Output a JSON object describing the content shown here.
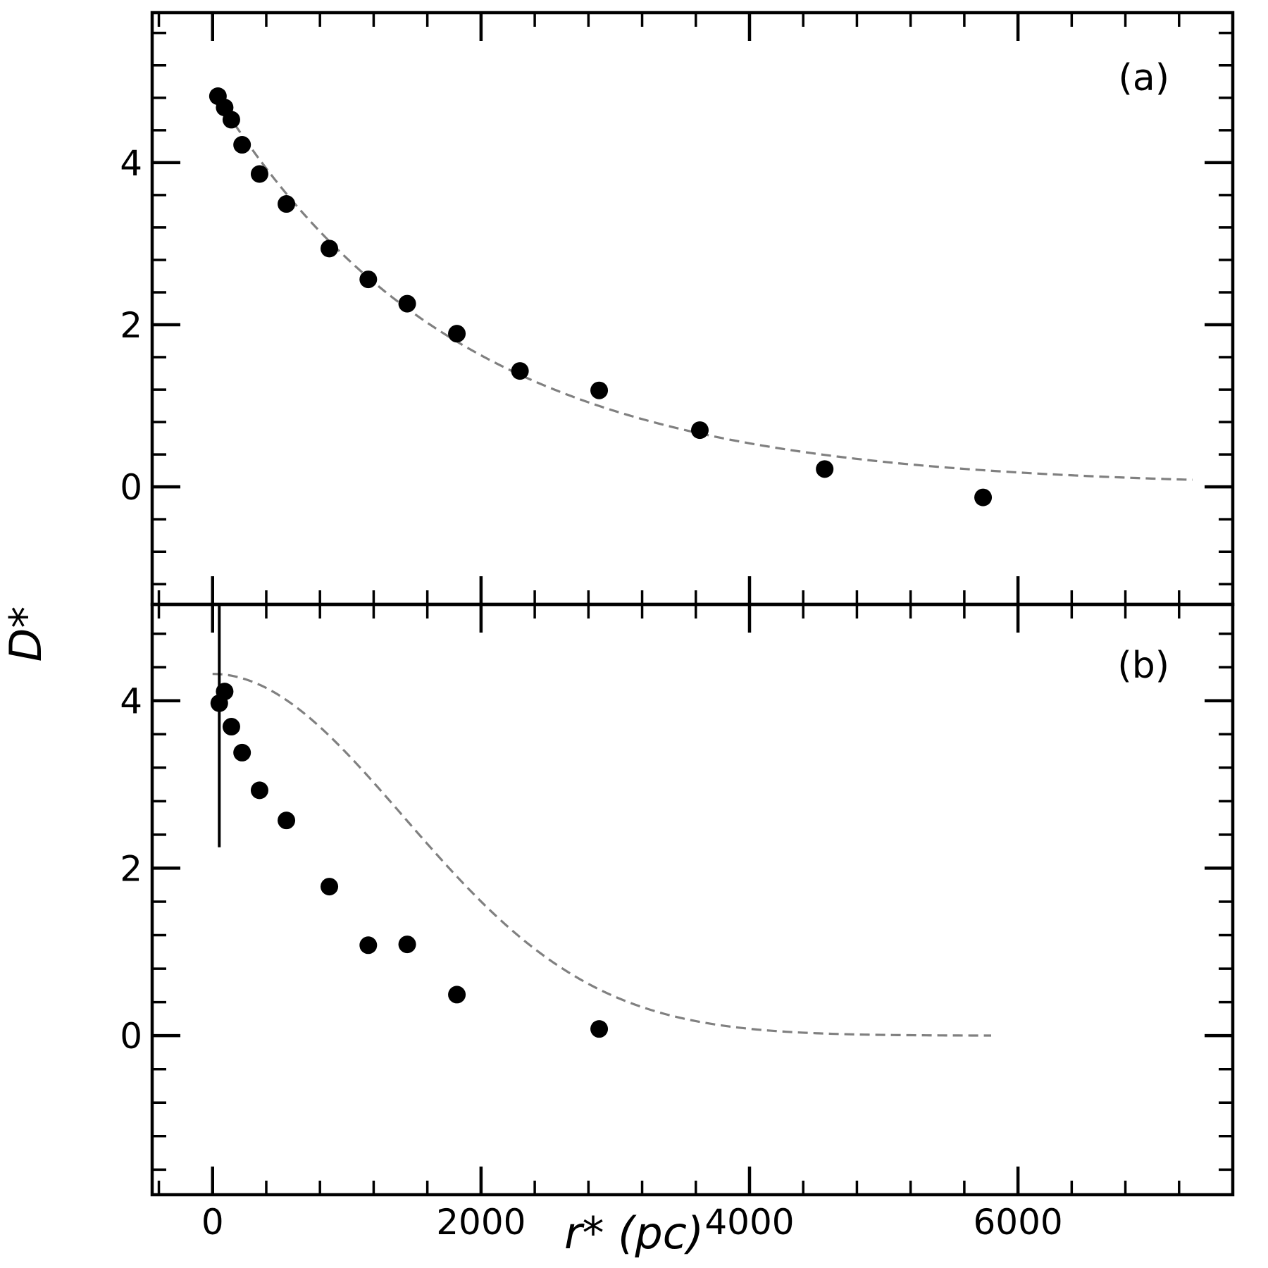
{
  "colors": {
    "points": "#000000",
    "fit": "#808080",
    "frame": "#000000"
  },
  "chart_data": {
    "type": "scatter",
    "xlabel": "r*  (pc)",
    "ylabel": "D*",
    "xlim": [
      -450,
      7600
    ],
    "x_ticks": [
      0,
      2000,
      4000,
      6000
    ],
    "x_minor_step": 400,
    "panels": [
      {
        "label": "(a)",
        "ylim": [
          -1.45,
          5.85
        ],
        "y_ticks": [
          0,
          2,
          4
        ],
        "y_minor_step": 0.4,
        "points": {
          "x": [
            40,
            90,
            140,
            220,
            350,
            550,
            870,
            1160,
            1450,
            1820,
            2290,
            2880,
            3630,
            4560,
            5740
          ],
          "y": [
            4.82,
            4.68,
            4.53,
            4.22,
            3.86,
            3.49,
            2.94,
            2.56,
            2.26,
            1.89,
            1.43,
            1.19,
            0.7,
            0.22,
            -0.13
          ]
        },
        "fit": {
          "model": "exponential",
          "x_range": [
            40,
            7300
          ],
          "amplitude": 4.9,
          "scale_length": 1810
        }
      },
      {
        "label": "(b)",
        "ylim": [
          -1.9,
          5.15
        ],
        "y_ticks": [
          0,
          2,
          4
        ],
        "y_minor_step": 0.4,
        "points": {
          "x": [
            50,
            90,
            140,
            220,
            350,
            550,
            870,
            1160,
            1450,
            1820,
            2880
          ],
          "y": [
            3.97,
            4.11,
            3.69,
            3.38,
            2.93,
            2.57,
            1.78,
            1.08,
            1.09,
            0.49,
            0.08
          ]
        },
        "error_bars": [
          {
            "x": 50,
            "y_low": 2.25,
            "y_high": 5.15
          }
        ],
        "fit": {
          "model": "gaussian",
          "x_range": [
            0,
            5800
          ],
          "amplitude": 4.32,
          "scale_length": 1420
        }
      }
    ]
  }
}
